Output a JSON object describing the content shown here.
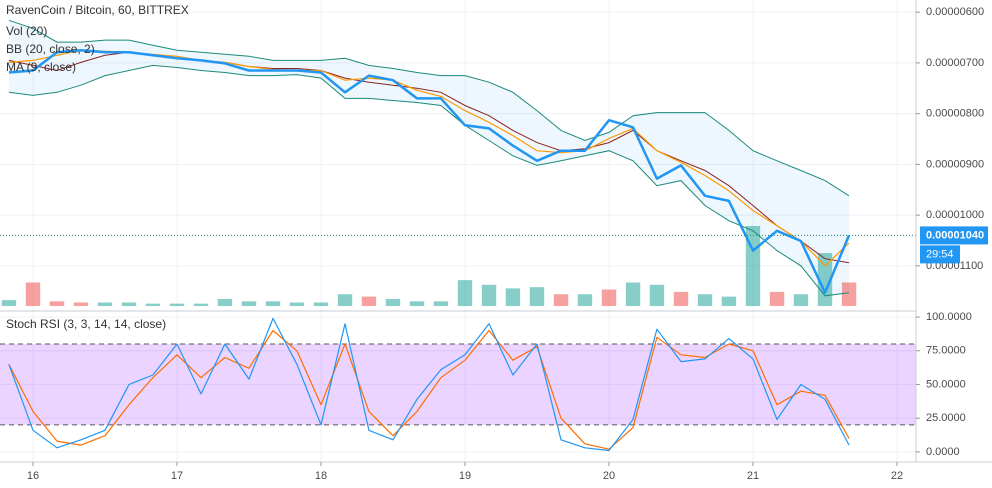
{
  "chart_data": [
    {
      "type": "line",
      "title": "RavenCoin / Bitcoin, 60, BITTREX",
      "x": [
        15.833,
        16,
        16.167,
        16.333,
        16.5,
        16.667,
        16.833,
        17,
        17.167,
        17.333,
        17.5,
        17.667,
        17.833,
        18,
        18.167,
        18.333,
        18.5,
        18.667,
        18.833,
        19,
        19.167,
        19.333,
        19.5,
        19.667,
        19.833,
        20,
        20.167,
        20.333,
        20.5,
        20.667,
        20.833,
        21,
        21.167,
        21.333,
        21.5,
        21.667
      ],
      "xlim": [
        15.771,
        22.132
      ],
      "xticks": [
        16,
        17,
        18,
        19,
        20,
        21,
        22
      ],
      "ylim": [
        1.189e-05,
        5.76e-06
      ],
      "yticks": [
        {
          "value": 1.1e-05,
          "label": "0.00001100"
        },
        {
          "value": 1e-05,
          "label": "0.00001000"
        },
        {
          "value": 9e-06,
          "label": "0.00000900"
        },
        {
          "value": 8e-06,
          "label": "0.00000800"
        },
        {
          "value": 7e-06,
          "label": "0.00000700"
        },
        {
          "value": 6e-06,
          "label": "0.00000600"
        }
      ],
      "grid": true,
      "series": [
        {
          "color": "#2196f3",
          "values": [
            7.19e-06,
            7.15e-06,
            6.79e-06,
            6.75e-06,
            6.79e-06,
            6.79e-06,
            6.85e-06,
            6.91e-06,
            6.95e-06,
            7.01e-06,
            7.15e-06,
            7.15e-06,
            7.15e-06,
            7.19e-06,
            7.58e-06,
            7.25e-06,
            7.34e-06,
            7.7e-06,
            7.7e-06,
            8.23e-06,
            8.29e-06,
            8.63e-06,
            8.93e-06,
            8.73e-06,
            8.73e-06,
            8.13e-06,
            8.27e-06,
            9.28e-06,
            9.02e-06,
            9.62e-06,
            9.72e-06,
            1.07e-05,
            1.031e-05,
            1.051e-05,
            1.153e-05,
            1.04e-05
          ]
        },
        {
          "name": "MA (9, close)",
          "color": "#ff9800",
          "values": [
            6.99e-06,
            6.95e-06,
            6.85e-06,
            6.75e-06,
            6.77e-06,
            6.79e-06,
            6.83e-06,
            6.87e-06,
            6.95e-06,
            6.99e-06,
            7.07e-06,
            7.13e-06,
            7.15e-06,
            7.15e-06,
            7.34e-06,
            7.3e-06,
            7.34e-06,
            7.54e-06,
            7.66e-06,
            7.94e-06,
            8.17e-06,
            8.43e-06,
            8.73e-06,
            8.77e-06,
            8.73e-06,
            8.49e-06,
            8.29e-06,
            8.73e-06,
            8.96e-06,
            9.22e-06,
            9.52e-06,
            9.91e-06,
            1.021e-05,
            1.051e-05,
            1.1e-05,
            1.055e-05
          ]
        }
      ],
      "bb": {
        "name": "BB (20, close, 2)",
        "band_color": "#1b8a7a",
        "basis_color": "#8b2323",
        "fill": "rgba(33,150,243,0.08)",
        "upper": [
          7.58e-06,
          7.64e-06,
          7.58e-06,
          7.44e-06,
          7.25e-06,
          7.15e-06,
          7.05e-06,
          7.09e-06,
          7.15e-06,
          7.19e-06,
          7.25e-06,
          7.25e-06,
          7.23e-06,
          7.3e-06,
          7.7e-06,
          7.7e-06,
          7.74e-06,
          7.78e-06,
          7.84e-06,
          8.23e-06,
          8.53e-06,
          8.83e-06,
          9.02e-06,
          8.93e-06,
          8.83e-06,
          8.73e-06,
          8.93e-06,
          9.42e-06,
          9.32e-06,
          9.81e-06,
          1.011e-05,
          1.031e-05,
          1.07e-05,
          1.1e-05,
          1.159e-05,
          1.153e-05
        ],
        "basis": [
          6.95e-06,
          7.05e-06,
          7.15e-06,
          6.99e-06,
          6.85e-06,
          6.79e-06,
          6.85e-06,
          6.91e-06,
          6.95e-06,
          6.99e-06,
          7.07e-06,
          7.11e-06,
          7.11e-06,
          7.15e-06,
          7.3e-06,
          7.38e-06,
          7.44e-06,
          7.5e-06,
          7.58e-06,
          7.84e-06,
          8.04e-06,
          8.33e-06,
          8.57e-06,
          8.73e-06,
          8.69e-06,
          8.57e-06,
          8.33e-06,
          8.73e-06,
          8.93e-06,
          9.12e-06,
          9.42e-06,
          9.81e-06,
          1.021e-05,
          1.051e-05,
          1.086e-05,
          1.094e-05
        ],
        "lower": [
          6.16e-06,
          6.32e-06,
          6.59e-06,
          6.59e-06,
          6.55e-06,
          6.55e-06,
          6.65e-06,
          6.75e-06,
          6.79e-06,
          6.83e-06,
          6.87e-06,
          6.95e-06,
          6.95e-06,
          6.95e-06,
          6.91e-06,
          7.05e-06,
          7.11e-06,
          7.19e-06,
          7.25e-06,
          7.25e-06,
          7.38e-06,
          7.58e-06,
          7.94e-06,
          8.33e-06,
          8.53e-06,
          8.37e-06,
          8.04e-06,
          7.98e-06,
          7.98e-06,
          7.98e-06,
          8.33e-06,
          8.73e-06,
          8.93e-06,
          9.12e-06,
          9.32e-06,
          9.62e-06
        ]
      },
      "volume": {
        "name": "Vol (20)",
        "up_color": "rgba(38,166,154,0.55)",
        "down_color": "rgba(239,83,80,0.55)",
        "values": [
          5,
          20,
          4,
          3,
          3,
          3,
          2,
          2,
          2,
          6,
          4,
          4,
          3,
          3,
          10,
          8,
          6,
          4,
          4,
          22,
          18,
          15,
          16,
          10,
          10,
          14,
          20,
          18,
          12,
          10,
          8,
          68,
          12,
          10,
          45,
          20
        ]
      },
      "last_price": {
        "value": 1.04e-05,
        "label": "0.00001040"
      },
      "timer": "29:54"
    },
    {
      "type": "line",
      "title": "Stoch RSI (3, 3, 14, 14, close)",
      "ylim": [
        -7.5,
        104.5
      ],
      "yticks": [
        {
          "value": 100,
          "label": "100.0000"
        },
        {
          "value": 75,
          "label": "75.0000"
        },
        {
          "value": 50,
          "label": "50.0000"
        },
        {
          "value": 25,
          "label": "25.0000"
        },
        {
          "value": 0,
          "label": "0.0000"
        }
      ],
      "bands": [
        80,
        20
      ],
      "band_color": "rgba(156,39,255,0.2)",
      "series": [
        {
          "color": "#2196f3",
          "values": [
            65,
            16,
            3,
            9,
            16,
            50,
            57,
            80,
            43,
            80,
            54,
            99,
            65,
            20,
            95,
            16,
            9,
            39,
            61,
            72,
            95,
            57,
            80,
            9,
            3,
            1,
            24,
            91,
            67,
            69,
            84,
            69,
            24,
            50,
            39,
            5
          ]
        },
        {
          "color": "#ff6d00",
          "values": [
            65,
            30,
            8,
            5,
            12,
            35,
            55,
            72,
            55,
            70,
            62,
            90,
            75,
            35,
            80,
            30,
            12,
            30,
            55,
            68,
            90,
            68,
            78,
            25,
            6,
            2,
            18,
            85,
            72,
            70,
            80,
            75,
            35,
            45,
            42,
            10
          ]
        }
      ]
    }
  ]
}
